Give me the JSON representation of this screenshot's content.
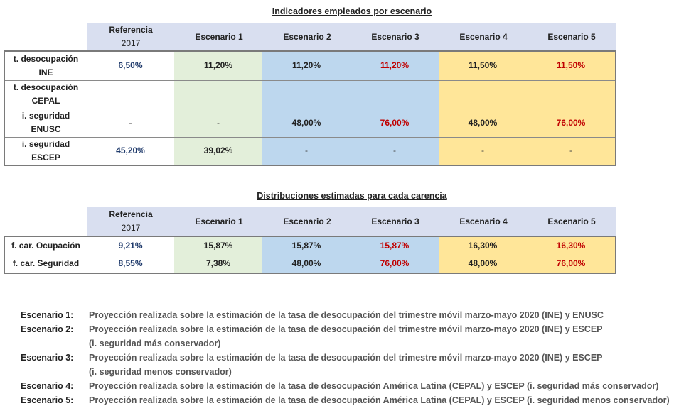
{
  "table1": {
    "title": "Indicadores empleados por escenario",
    "headers": {
      "ref_line1": "Referencia",
      "ref_line2": "2017",
      "s1": "Escenario 1",
      "s2": "Escenario 2",
      "s3": "Escenario 3",
      "s4": "Escenario 4",
      "s5": "Escenario 5"
    },
    "rows": [
      {
        "label1": "t. desocupación",
        "label2": "INE",
        "ref": "6,50%",
        "s1": "11,20%",
        "s2": "11,20%",
        "s3": "11,20%",
        "s4": "11,50%",
        "s5": "11,50%"
      },
      {
        "label1": "t. desocupación",
        "label2": "CEPAL",
        "ref": "",
        "s1": "",
        "s2": "",
        "s3": "",
        "s4": "",
        "s5": ""
      },
      {
        "label1": "i. seguridad",
        "label2": "ENUSC",
        "ref": "-",
        "s1": "-",
        "s2": "48,00%",
        "s3": "76,00%",
        "s4": "48,00%",
        "s5": "76,00%"
      },
      {
        "label1": "i. seguridad",
        "label2": "ESCEP",
        "ref": "45,20%",
        "s1": "39,02%",
        "s2": "-",
        "s3": "-",
        "s4": "-",
        "s5": "-"
      }
    ]
  },
  "table2": {
    "title": "Distribuciones estimadas para cada carencia",
    "headers": {
      "ref_line1": "Referencia",
      "ref_line2": "2017",
      "s1": "Escenario 1",
      "s2": "Escenario 2",
      "s3": "Escenario 3",
      "s4": "Escenario 4",
      "s5": "Escenario 5"
    },
    "rows": [
      {
        "label": "f. car. Ocupación",
        "ref": "9,21%",
        "s1": "15,87%",
        "s2": "15,87%",
        "s3": "15,87%",
        "s4": "16,30%",
        "s5": "16,30%"
      },
      {
        "label": "f. car. Seguridad",
        "ref": "8,55%",
        "s1": "7,38%",
        "s2": "48,00%",
        "s3": "76,00%",
        "s4": "48,00%",
        "s5": "76,00%"
      }
    ]
  },
  "notes": [
    {
      "label": "Escenario 1:",
      "lines": [
        "Proyección realizada sobre la estimación de la tasa de desocupación del trimestre móvil marzo-mayo 2020 (INE) y ENUSC"
      ]
    },
    {
      "label": "Escenario 2:",
      "lines": [
        "Proyección realizada sobre la estimación de la tasa de desocupación del trimestre móvil marzo-mayo 2020 (INE) y ESCEP",
        "(i. seguridad más conservador)"
      ]
    },
    {
      "label": "Escenario 3:",
      "lines": [
        "Proyección realizada sobre la estimación de la tasa de desocupación del trimestre móvil marzo-mayo 2020 (INE) y ESCEP",
        "(i. seguridad menos conservador)"
      ]
    },
    {
      "label": "Escenario 4:",
      "lines": [
        "Proyección realizada sobre la estimación de la tasa de desocupación América Latina (CEPAL) y ESCEP (i. seguridad más conservador)"
      ]
    },
    {
      "label": "Escenario 5:",
      "lines": [
        "Proyección realizada sobre la estimación de la tasa de desocupación América Latina (CEPAL) y ESCEP (i. seguridad menos conservador)"
      ]
    }
  ],
  "colors": {
    "header_bg": "#d9dff0",
    "green": "#e3efda",
    "blue": "#bdd7ee",
    "yellow": "#ffe699",
    "red_text": "#c00000",
    "ref_text": "#1f3a6b"
  }
}
